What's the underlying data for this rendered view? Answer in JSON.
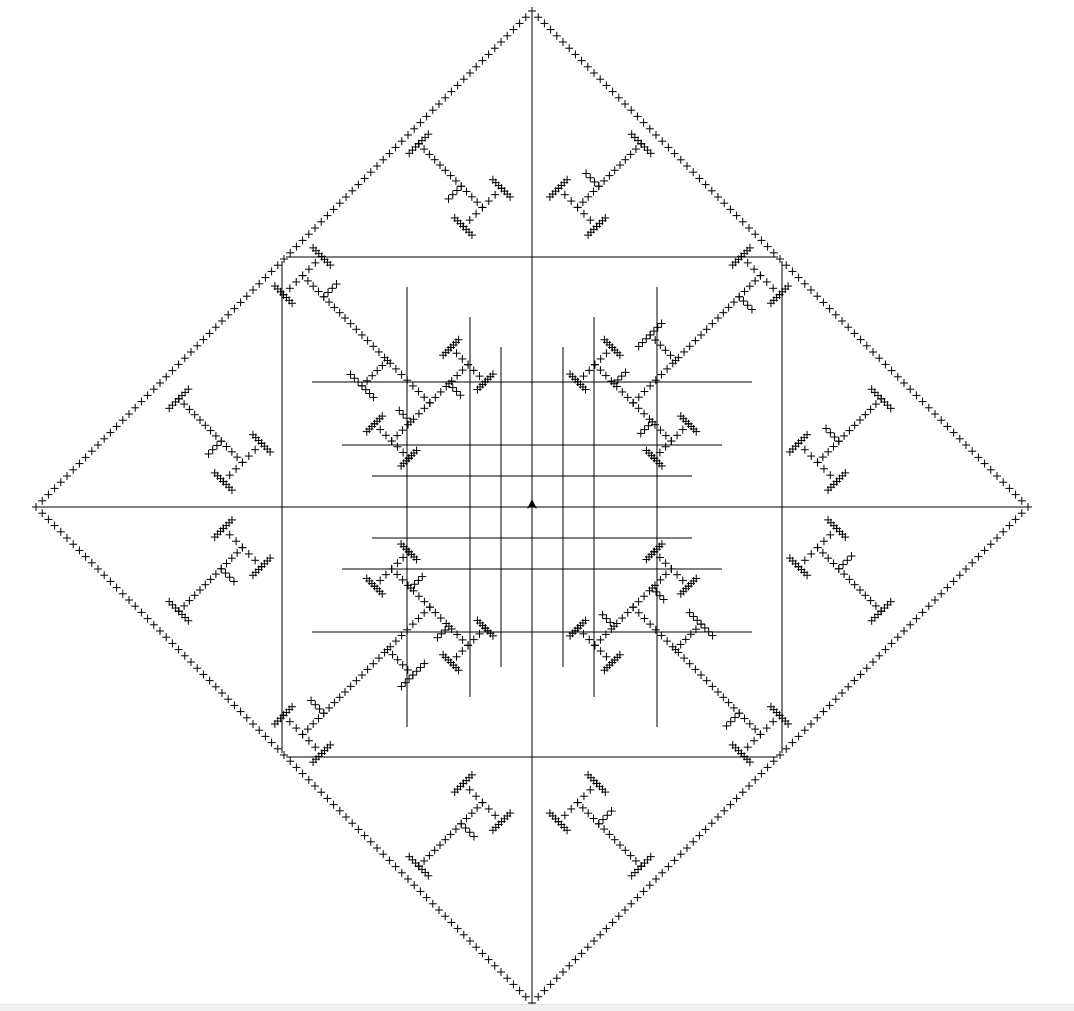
{
  "drawing": {
    "description_kind": "turtle-graphics fractal",
    "stroke_color": "#000000",
    "background_color": "#ffffff",
    "recursion_depth": 7,
    "turtle_cursor": "arrow-cursor-icon"
  },
  "status_bar": {
    "color": "#f0f0f0"
  }
}
